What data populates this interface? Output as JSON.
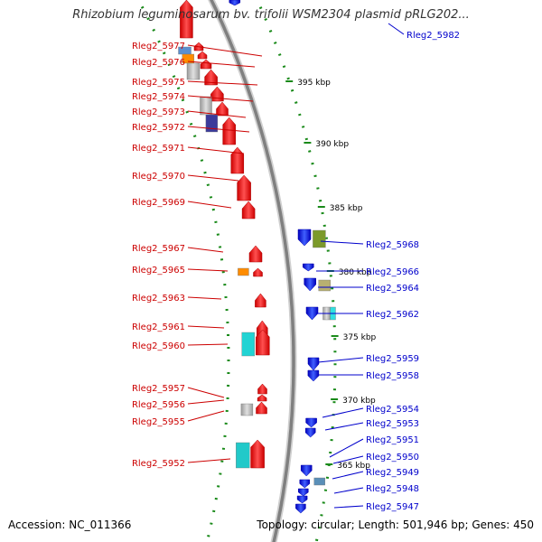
{
  "title": "Rhizobium leguminosarum bv. trifolii WSM2304 plasmid pRLG202...",
  "footer": {
    "accession": "Accession: NC_011366",
    "stats": "Topology: circular; Length: 501,946 bp; Genes: 450"
  },
  "colors": {
    "forward": "#ff0000",
    "reverse": "#0000ff",
    "backbone": "#808080",
    "dots": "#1a8a1a"
  },
  "scale_ticks": [
    {
      "label": "395 kbp",
      "kbp": 395
    },
    {
      "label": "390 kbp",
      "kbp": 390
    },
    {
      "label": "385 kbp",
      "kbp": 385
    },
    {
      "label": "380 kbp",
      "kbp": 380
    },
    {
      "label": "375 kbp",
      "kbp": 375
    },
    {
      "label": "370 kbp",
      "kbp": 370
    },
    {
      "label": "365 kbp",
      "kbp": 365
    }
  ],
  "left_labels": [
    "Rleg2_5977",
    "Rleg2_5976",
    "Rleg2_5975",
    "Rleg2_5974",
    "Rleg2_5973",
    "Rleg2_5972",
    "Rleg2_5971",
    "Rleg2_5970",
    "Rleg2_5969",
    "Rleg2_5967",
    "Rleg2_5965",
    "Rleg2_5963",
    "Rleg2_5961",
    "Rleg2_5960",
    "Rleg2_5957",
    "Rleg2_5956",
    "Rleg2_5955",
    "Rleg2_5952"
  ],
  "right_labels": [
    "Rleg2_5982",
    "Rleg2_5968",
    "Rleg2_5966",
    "Rleg2_5964",
    "Rleg2_5962",
    "Rleg2_5959",
    "Rleg2_5958",
    "Rleg2_5954",
    "Rleg2_5953",
    "Rleg2_5951",
    "Rleg2_5950",
    "Rleg2_5949",
    "Rleg2_5948",
    "Rleg2_5947"
  ]
}
